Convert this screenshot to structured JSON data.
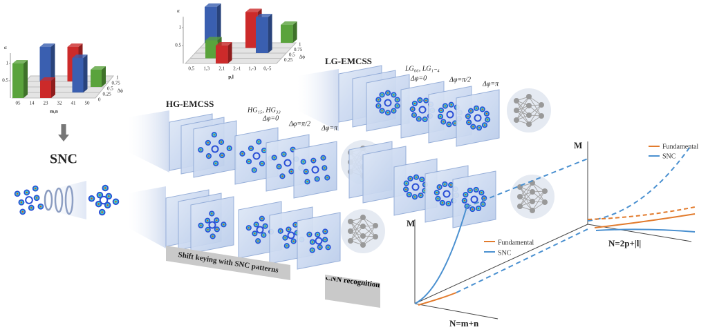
{
  "bar_chart_mn": {
    "y_label": "α",
    "x_label": "m,n",
    "z_label": "Δϕ",
    "categories": [
      "05",
      "14",
      "23",
      "32",
      "41",
      "50"
    ],
    "yticks": [
      1,
      0.5
    ],
    "zticks": [
      1,
      0.75,
      0.5,
      0.25,
      0
    ],
    "alpha": [
      1,
      1,
      0.5,
      1,
      1,
      0.5
    ],
    "dphi": [
      0,
      0.75,
      0,
      0.75,
      0.25,
      0.5
    ],
    "colors": [
      "#5aa33c",
      "#3a5fb0",
      "#cc2a2a",
      "#cc2a2a",
      "#3a5fb0",
      "#5aa33c"
    ]
  },
  "bar_chart_pl": {
    "y_label": "α",
    "x_label": "p,l",
    "z_label": "Δϕ",
    "categories": [
      "0,5",
      "1,3",
      "2,1",
      "2,-1",
      "1,-3",
      "0,-5"
    ],
    "yticks": [
      1,
      0.5
    ],
    "zticks": [
      1,
      0.75,
      0.5,
      0.25
    ],
    "alpha": [
      1,
      0.5,
      0.5,
      1,
      1,
      0.5
    ],
    "dphi": [
      1,
      0.25,
      0,
      0.75,
      0.5,
      1
    ],
    "colors": [
      "#3a5fb0",
      "#5aa33c",
      "#cc2a2a",
      "#cc2a2a",
      "#3a5fb0",
      "#5aa33c"
    ]
  },
  "snc_label": "SNC",
  "hg": {
    "title": "HG-EMCSS",
    "modes": "HG₁₅, HG₃₃",
    "phases": [
      "Δφ=0",
      "Δφ=π/2",
      "Δφ=π"
    ]
  },
  "lg": {
    "title": "LG-EMCSS",
    "modes": "LG₀₆, LG₁₋₄",
    "phases": [
      "Δφ=0",
      "Δφ=π/2",
      "Δφ=π"
    ]
  },
  "shift_keying_label": "Shift keying with SNC patterns",
  "cnn_label": "CNN recognition",
  "plot_front": {
    "y_label": "M",
    "x_label": "N=m+n",
    "legend": [
      "Fundamental",
      "SNC"
    ]
  },
  "plot_back": {
    "y_label": "M",
    "x_label": "N=2p+|l|",
    "legend": [
      "Fundamental",
      "SNC"
    ]
  }
}
